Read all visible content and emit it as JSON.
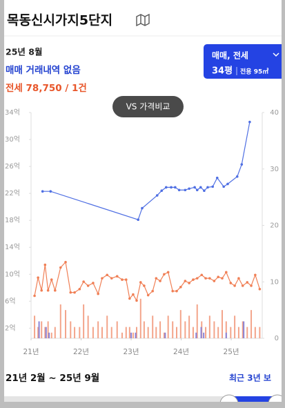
{
  "header": {
    "title": "목동신시가지5단지"
  },
  "summary": {
    "month": "25년 8월",
    "sale": "매매 거래내역 없음",
    "jeonse": "전세 78,750 / 1건"
  },
  "selector": {
    "deal": "매매, 전세",
    "size": "34평",
    "area": "전용 95㎡"
  },
  "compare_button": "VS 가격비교",
  "chart_data": {
    "type": "combo",
    "xlim": [
      21,
      25.62
    ],
    "xticks": [
      {
        "value": 21,
        "label": "21년"
      },
      {
        "value": 22,
        "label": "22년"
      },
      {
        "value": 23,
        "label": "23년"
      },
      {
        "value": 24,
        "label": "24년"
      },
      {
        "value": 25,
        "label": "25년"
      }
    ],
    "ylim": [
      0.5,
      34
    ],
    "yticks": [
      {
        "value": 2,
        "label": "2억"
      },
      {
        "value": 6,
        "label": "6억"
      },
      {
        "value": 10,
        "label": "10억"
      },
      {
        "value": 14,
        "label": "14억"
      },
      {
        "value": 18,
        "label": "18억"
      },
      {
        "value": 22,
        "label": "22억"
      },
      {
        "value": 26,
        "label": "26억"
      },
      {
        "value": 30,
        "label": "30억"
      },
      {
        "value": 34,
        "label": "34억"
      }
    ],
    "y2lim": [
      0,
      40
    ],
    "y2ticks": [
      0,
      10,
      20,
      30,
      40
    ],
    "grid": false,
    "series": [
      {
        "type": "bar",
        "axis": "y2",
        "color": "#f3a48a",
        "x": [
          21.07,
          21.14,
          21.21,
          21.28,
          21.34,
          21.41,
          21.48,
          21.59,
          21.69,
          21.79,
          21.87,
          21.97,
          22.05,
          22.14,
          22.24,
          22.34,
          22.42,
          22.52,
          22.61,
          22.72,
          22.82,
          22.9,
          22.97,
          23.04,
          23.11,
          23.19,
          23.26,
          23.34,
          23.43,
          23.5,
          23.58,
          23.66,
          23.74,
          23.83,
          23.91,
          23.99,
          24.08,
          24.16,
          24.24,
          24.32,
          24.41,
          24.49,
          24.57,
          24.66,
          24.74,
          24.82,
          24.9,
          24.99,
          25.07,
          25.15,
          25.23,
          25.32,
          25.4,
          25.48,
          25.57
        ],
        "values": [
          4,
          2,
          3,
          2,
          3,
          1,
          2,
          6,
          5,
          3,
          2,
          2,
          6,
          4,
          2,
          3,
          2,
          4,
          2,
          3,
          1,
          2,
          2,
          1,
          2,
          7,
          3,
          2,
          4,
          2,
          3,
          1,
          4,
          3,
          2,
          5,
          3,
          4,
          2,
          6,
          3,
          2,
          4,
          3,
          2,
          5,
          3,
          2,
          4,
          2,
          3,
          2,
          5,
          2,
          2
        ]
      },
      {
        "type": "bar",
        "axis": "y2",
        "color": "#8a82d6",
        "x": [
          21.16,
          21.3,
          21.36,
          23.0,
          23.09,
          23.68,
          24.3,
          24.4,
          24.45,
          24.9,
          25.25
        ],
        "values": [
          3,
          2,
          1,
          1,
          1,
          1,
          1,
          2,
          1,
          1,
          3
        ]
      },
      {
        "type": "line",
        "color": "#f07f55",
        "x": [
          21.07,
          21.14,
          21.21,
          21.28,
          21.34,
          21.41,
          21.48,
          21.59,
          21.69,
          21.79,
          21.87,
          21.97,
          22.05,
          22.14,
          22.24,
          22.34,
          22.42,
          22.52,
          22.61,
          22.72,
          22.82,
          22.9,
          22.97,
          23.04,
          23.11,
          23.19,
          23.26,
          23.34,
          23.43,
          23.5,
          23.58,
          23.66,
          23.74,
          23.83,
          23.91,
          23.99,
          24.08,
          24.16,
          24.24,
          24.32,
          24.41,
          24.49,
          24.57,
          24.66,
          24.74,
          24.82,
          24.9,
          24.99,
          25.07,
          25.15,
          25.23,
          25.32,
          25.4,
          25.48,
          25.57
        ],
        "values": [
          6.8,
          9.5,
          7.6,
          11.4,
          7.6,
          9.2,
          7.6,
          11.0,
          11.8,
          7.3,
          7.3,
          7.8,
          8.9,
          8.3,
          8.7,
          7.1,
          9.4,
          9.9,
          9.4,
          9.7,
          9.2,
          9.2,
          6.4,
          7.0,
          6.1,
          8.8,
          8.3,
          6.9,
          7.5,
          9.4,
          9.0,
          10.0,
          10.3,
          7.5,
          7.5,
          8.1,
          9.0,
          8.7,
          9.2,
          9.4,
          9.9,
          9.4,
          9.4,
          9.0,
          9.6,
          9.4,
          10.3,
          8.7,
          8.3,
          9.4,
          8.3,
          8.8,
          8.3,
          9.9,
          7.8
        ]
      },
      {
        "type": "line",
        "color": "#4f6fe3",
        "x": [
          21.23,
          21.39,
          23.14,
          23.22,
          23.52,
          23.61,
          23.7,
          23.8,
          23.88,
          23.96,
          24.08,
          24.16,
          24.27,
          24.32,
          24.39,
          24.46,
          24.53,
          24.63,
          24.72,
          24.85,
          24.93,
          25.12,
          25.21,
          25.37
        ],
        "values": [
          22.3,
          22.3,
          18.1,
          19.8,
          21.7,
          22.4,
          22.9,
          22.9,
          22.9,
          22.5,
          22.5,
          22.7,
          22.9,
          22.5,
          22.9,
          22.4,
          22.9,
          23.0,
          24.3,
          23.0,
          23.4,
          24.5,
          26.3,
          32.6
        ]
      }
    ]
  },
  "period": {
    "range": "21년 2월 ~ 25년 9월",
    "preset": "최근 3년 보"
  }
}
